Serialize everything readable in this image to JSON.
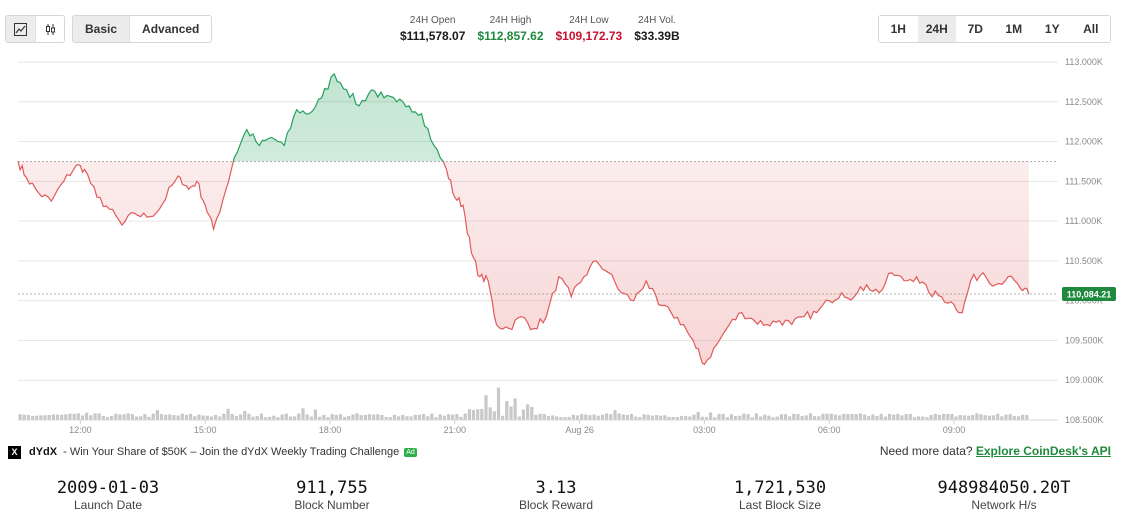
{
  "toolbar": {
    "chart_types": [
      {
        "icon": "line-chart-icon",
        "active": true
      },
      {
        "icon": "candlestick-icon",
        "active": false
      }
    ],
    "modes": [
      {
        "label": "Basic",
        "active": true
      },
      {
        "label": "Advanced",
        "active": false
      }
    ],
    "ranges": [
      {
        "label": "1H",
        "active": false
      },
      {
        "label": "24H",
        "active": true
      },
      {
        "label": "7D",
        "active": false
      },
      {
        "label": "1M",
        "active": false
      },
      {
        "label": "1Y",
        "active": false
      },
      {
        "label": "All",
        "active": false
      }
    ]
  },
  "stats": {
    "open": {
      "label": "24H Open",
      "value": "$111,578.07"
    },
    "high": {
      "label": "24H High",
      "value": "$112,857.62"
    },
    "low": {
      "label": "24H Low",
      "value": "$109,172.73"
    },
    "vol": {
      "label": "24H Vol.",
      "value": "$33.39B"
    }
  },
  "chart_data": {
    "type": "area",
    "baseline": 111750,
    "current_price_label": "110,084.21",
    "current_price": 110084.21,
    "ylim": [
      108500,
      113000
    ],
    "y_ticks": [
      108500,
      109000,
      109500,
      110000,
      110500,
      111000,
      111500,
      112000,
      112500,
      113000
    ],
    "y_tick_labels": [
      "108.500K",
      "109.000K",
      "109.500K",
      "110.000K",
      "110.500K",
      "111.000K",
      "111.500K",
      "112.000K",
      "112.500K",
      "113.000K"
    ],
    "x_domain": [
      10.5,
      35.5
    ],
    "x_ticks": [
      12,
      15,
      18,
      21,
      24,
      27,
      30,
      33
    ],
    "x_tick_labels": [
      "12:00",
      "15:00",
      "18:00",
      "21:00",
      "Aug 26",
      "03:00",
      "06:00",
      "09:00"
    ],
    "anchors": [
      [
        10.5,
        111750
      ],
      [
        10.7,
        111550
      ],
      [
        11.0,
        111350
      ],
      [
        11.3,
        111250
      ],
      [
        11.6,
        111500
      ],
      [
        11.9,
        111700
      ],
      [
        12.1,
        111650
      ],
      [
        12.4,
        111300
      ],
      [
        12.7,
        111150
      ],
      [
        13.0,
        110950
      ],
      [
        13.3,
        111100
      ],
      [
        13.6,
        111050
      ],
      [
        13.9,
        111150
      ],
      [
        14.2,
        111450
      ],
      [
        14.4,
        111550
      ],
      [
        14.6,
        111400
      ],
      [
        14.8,
        111500
      ],
      [
        15.0,
        111200
      ],
      [
        15.2,
        110900
      ],
      [
        15.5,
        111400
      ],
      [
        15.7,
        111800
      ],
      [
        16.0,
        112150
      ],
      [
        16.3,
        111950
      ],
      [
        16.6,
        112050
      ],
      [
        16.9,
        111950
      ],
      [
        17.2,
        112400
      ],
      [
        17.5,
        112350
      ],
      [
        17.8,
        112550
      ],
      [
        18.1,
        112850
      ],
      [
        18.4,
        112650
      ],
      [
        18.7,
        112450
      ],
      [
        19.0,
        112650
      ],
      [
        19.3,
        112550
      ],
      [
        19.6,
        112500
      ],
      [
        19.9,
        112450
      ],
      [
        20.2,
        112350
      ],
      [
        20.5,
        111950
      ],
      [
        20.8,
        111650
      ],
      [
        21.0,
        111300
      ],
      [
        21.2,
        111200
      ],
      [
        21.4,
        110600
      ],
      [
        21.6,
        110300
      ],
      [
        21.8,
        110250
      ],
      [
        22.0,
        109700
      ],
      [
        22.3,
        109650
      ],
      [
        22.6,
        109800
      ],
      [
        22.9,
        109650
      ],
      [
        23.2,
        109800
      ],
      [
        23.5,
        110300
      ],
      [
        23.8,
        110050
      ],
      [
        24.1,
        110300
      ],
      [
        24.4,
        110500
      ],
      [
        24.7,
        110350
      ],
      [
        25.0,
        110100
      ],
      [
        25.3,
        110000
      ],
      [
        25.6,
        110250
      ],
      [
        25.9,
        109950
      ],
      [
        26.2,
        109850
      ],
      [
        26.5,
        109700
      ],
      [
        26.8,
        109400
      ],
      [
        27.0,
        109200
      ],
      [
        27.3,
        109450
      ],
      [
        27.6,
        109700
      ],
      [
        27.9,
        109850
      ],
      [
        28.2,
        109750
      ],
      [
        28.5,
        109700
      ],
      [
        28.8,
        109750
      ],
      [
        29.1,
        109700
      ],
      [
        29.4,
        109800
      ],
      [
        29.7,
        109850
      ],
      [
        30.0,
        110000
      ],
      [
        30.3,
        110100
      ],
      [
        30.6,
        110050
      ],
      [
        30.9,
        110200
      ],
      [
        31.2,
        110100
      ],
      [
        31.5,
        110350
      ],
      [
        31.8,
        110250
      ],
      [
        32.1,
        110300
      ],
      [
        32.4,
        110100
      ],
      [
        32.7,
        110050
      ],
      [
        33.0,
        109950
      ],
      [
        33.2,
        109850
      ],
      [
        33.4,
        110250
      ],
      [
        33.7,
        110350
      ],
      [
        34.0,
        110200
      ],
      [
        34.3,
        110300
      ],
      [
        34.6,
        110150
      ],
      [
        34.8,
        110084
      ]
    ],
    "volume_spikes": [
      [
        22.1,
        7.2
      ],
      [
        21.8,
        5.5
      ],
      [
        22.5,
        4.8
      ],
      [
        22.3,
        4.2
      ],
      [
        22.8,
        3.5
      ],
      [
        17.1,
        3.0
      ],
      [
        17.4,
        2.6
      ],
      [
        17.7,
        2.3
      ],
      [
        13.8,
        2.2
      ],
      [
        24.9,
        2.2
      ],
      [
        15.5,
        2.5
      ],
      [
        15.9,
        2.0
      ],
      [
        21.5,
        2.2
      ],
      [
        26.9,
        1.8
      ],
      [
        27.2,
        1.7
      ],
      [
        12.1,
        1.6
      ],
      [
        34.1,
        1.4
      ],
      [
        33.6,
        1.5
      ],
      [
        29.6,
        1.5
      ],
      [
        30.1,
        1.4
      ]
    ],
    "colors": {
      "up": "#26a05a",
      "down": "#e05a5a",
      "grid": "#e6e6e6",
      "axis_text": "#8a8a8a",
      "volume": "#c8c8c8",
      "price_tag": "#1f8a3d"
    }
  },
  "ad": {
    "logo": "X",
    "brand": "dYdX",
    "text": "- Win Your Share of $50K – Join the dYdX Weekly Trading Challenge",
    "badge": "Ad"
  },
  "need_more": {
    "text": "Need more data? ",
    "link": "Explore CoinDesk's API"
  },
  "metrics": [
    {
      "value": "2009-01-03",
      "label": "Launch Date"
    },
    {
      "value": "911,755",
      "label": "Block Number"
    },
    {
      "value": "3.13",
      "label": "Block Reward"
    },
    {
      "value": "1,721,530",
      "label": "Last Block Size"
    },
    {
      "value": "948984050.20T",
      "label": "Network H/s"
    }
  ]
}
